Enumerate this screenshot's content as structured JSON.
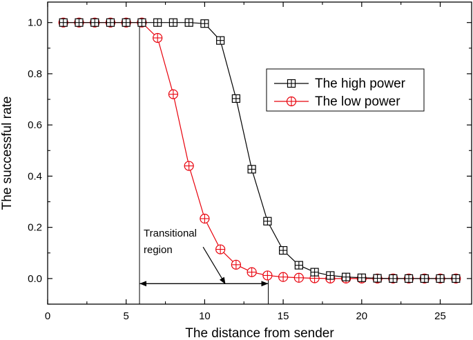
{
  "chart_data": {
    "type": "line",
    "xlabel": "The distance from sender",
    "ylabel": "The successful rate",
    "xlim": [
      0,
      27
    ],
    "ylim": [
      -0.1,
      1.08
    ],
    "xticks": [
      0,
      5,
      10,
      15,
      20,
      25
    ],
    "yticks": [
      0.0,
      0.2,
      0.4,
      0.6,
      0.8,
      1.0
    ],
    "x_tick_labels": [
      "0",
      "5",
      "10",
      "15",
      "20",
      "25"
    ],
    "y_tick_labels": [
      "0.0",
      "0.2",
      "0.4",
      "0.6",
      "0.8",
      "1.0"
    ],
    "grid": false,
    "legend_position": "top-right",
    "x": [
      1,
      2,
      3,
      4,
      5,
      6,
      7,
      8,
      9,
      10,
      11,
      12,
      13,
      14,
      15,
      16,
      17,
      18,
      19,
      20,
      21,
      22,
      23,
      24,
      25,
      26
    ],
    "series": [
      {
        "name": "The high power",
        "color": "#000000",
        "marker": "square-plus",
        "values": [
          1.0,
          1.0,
          1.0,
          1.0,
          1.0,
          1.0,
          1.0,
          1.0,
          1.0,
          0.996,
          0.93,
          0.703,
          0.427,
          0.224,
          0.11,
          0.052,
          0.025,
          0.012,
          0.006,
          0.003,
          0.001,
          0.0,
          0.0,
          0.0,
          0.0,
          0.0
        ]
      },
      {
        "name": "The low power",
        "color": "#e8000b",
        "marker": "circle-plus",
        "values": [
          1.0,
          1.0,
          1.0,
          1.0,
          1.0,
          1.0,
          0.94,
          0.72,
          0.44,
          0.234,
          0.114,
          0.054,
          0.025,
          0.012,
          0.006,
          0.003,
          0.001,
          0.0,
          0.0,
          0.0,
          0.0,
          0.0,
          0.0,
          0.0,
          0.0,
          0.0
        ]
      }
    ],
    "annotations": [
      {
        "text_lines": [
          "Transitional",
          "region"
        ],
        "region_x": [
          5.85,
          14.05
        ],
        "arrow_tail": [
          9.9,
          0.123
        ],
        "arrow_head": [
          11.3,
          -0.02
        ]
      }
    ]
  }
}
